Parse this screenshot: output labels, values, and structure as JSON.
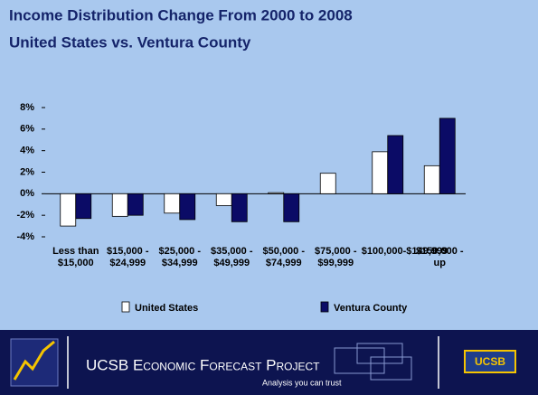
{
  "chart_data": {
    "type": "bar",
    "title": "Income Distribution Change From 2000 to 2008",
    "subtitle": "United States vs. Ventura County",
    "categories": [
      "Less than $15,000",
      "$15,000 - $24,999",
      "$25,000 - $34,999",
      "$35,000 - $49,999",
      "$50,000 - $74,999",
      "$75,000 - $99,999",
      "$100,000-$149,999",
      "$150,000 - up"
    ],
    "series": [
      {
        "name": "United States",
        "color": "#ffffff",
        "values": [
          -3.0,
          -2.1,
          -1.8,
          -1.1,
          0.1,
          1.9,
          3.9,
          2.6
        ]
      },
      {
        "name": "Ventura County",
        "color": "#0b0b66",
        "values": [
          -2.3,
          -2.0,
          -2.4,
          -2.6,
          -2.6,
          null,
          5.4,
          7.0
        ]
      }
    ],
    "ylim": [
      -4,
      8
    ],
    "yticks": [
      {
        "value": -4,
        "label": "-4%"
      },
      {
        "value": -2,
        "label": "-2%"
      },
      {
        "value": 0,
        "label": "0%"
      },
      {
        "value": 2,
        "label": "2%"
      },
      {
        "value": 4,
        "label": "4%"
      },
      {
        "value": 6,
        "label": "6%"
      },
      {
        "value": 8,
        "label": "8%"
      }
    ],
    "grid": false,
    "legend": "bottom"
  },
  "footer": {
    "title": "UCSB Economic Forecast Project",
    "tagline": "Analysis you can trust",
    "logo": "UCSB"
  }
}
